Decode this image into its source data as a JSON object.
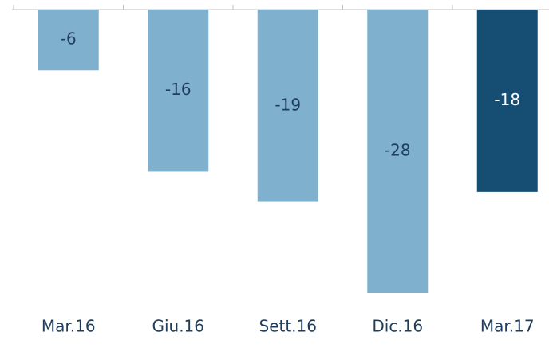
{
  "chart_data": {
    "type": "bar",
    "categories": [
      "Mar.16",
      "Giu.16",
      "Sett.16",
      "Dic.16",
      "Mar.17"
    ],
    "values": [
      -6,
      -16,
      -19,
      -28,
      -18
    ],
    "colors": [
      "#7fb0ce",
      "#7fb0ce",
      "#7fb0ce",
      "#7fb0ce",
      "#154e72"
    ]
  }
}
